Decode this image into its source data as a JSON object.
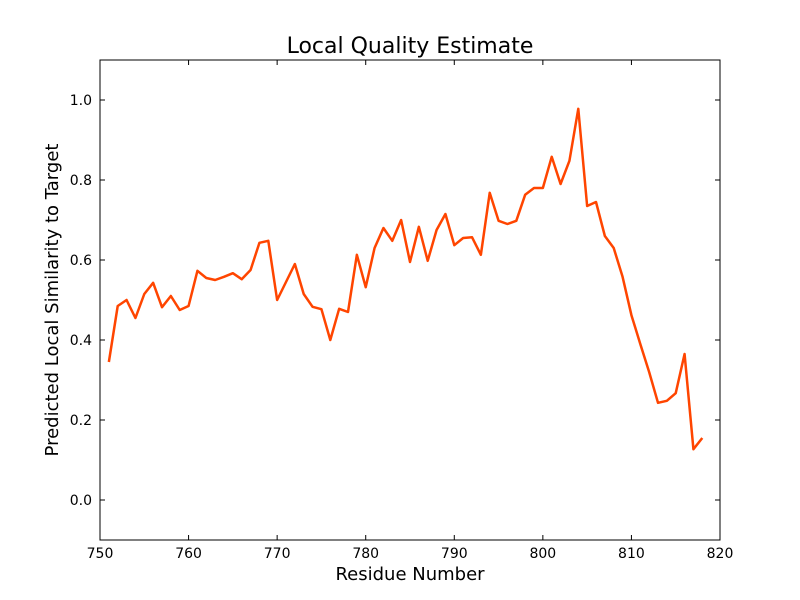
{
  "chart_data": {
    "type": "line",
    "title": "Local Quality Estimate",
    "xlabel": "Residue Number",
    "ylabel": "Predicted Local Similarity to Target",
    "xlim": [
      750,
      820
    ],
    "ylim": [
      -0.1,
      1.1
    ],
    "x_ticks": [
      750,
      760,
      770,
      780,
      790,
      800,
      810,
      820
    ],
    "x_tick_labels": [
      "750",
      "760",
      "770",
      "780",
      "790",
      "800",
      "810",
      "820"
    ],
    "y_ticks": [
      0.0,
      0.2,
      0.4,
      0.6,
      0.8,
      1.0
    ],
    "y_tick_labels": [
      "0.0",
      "0.2",
      "0.4",
      "0.6",
      "0.8",
      "1.0"
    ],
    "grid": false,
    "line_color": "#ff4500",
    "series": [
      {
        "x": [
          751,
          752,
          753,
          754,
          755,
          756,
          757,
          758,
          759,
          760,
          761,
          762,
          763,
          764,
          765,
          766,
          767,
          768,
          769,
          770,
          771,
          772,
          773,
          774,
          775,
          776,
          777,
          778,
          779,
          780,
          781,
          782,
          783,
          784,
          785,
          786,
          787,
          788,
          789,
          790,
          791,
          792,
          793,
          794,
          795,
          796,
          797,
          798,
          799,
          800,
          801,
          802,
          803,
          804,
          805,
          806,
          807,
          808,
          809,
          810,
          811,
          812,
          813,
          814,
          815,
          816,
          817,
          818
        ],
        "y": [
          0.345,
          0.485,
          0.5,
          0.455,
          0.515,
          0.543,
          0.482,
          0.51,
          0.475,
          0.485,
          0.573,
          0.555,
          0.55,
          0.558,
          0.567,
          0.552,
          0.575,
          0.643,
          0.648,
          0.5,
          0.545,
          0.59,
          0.515,
          0.483,
          0.477,
          0.4,
          0.478,
          0.47,
          0.613,
          0.532,
          0.63,
          0.68,
          0.648,
          0.7,
          0.595,
          0.683,
          0.598,
          0.675,
          0.715,
          0.637,
          0.655,
          0.657,
          0.613,
          0.768,
          0.698,
          0.69,
          0.698,
          0.763,
          0.78,
          0.78,
          0.858,
          0.79,
          0.848,
          0.978,
          0.735,
          0.745,
          0.66,
          0.63,
          0.558,
          0.462,
          0.39,
          0.32,
          0.243,
          0.248,
          0.267,
          0.365,
          0.127,
          0.155
        ]
      }
    ]
  }
}
